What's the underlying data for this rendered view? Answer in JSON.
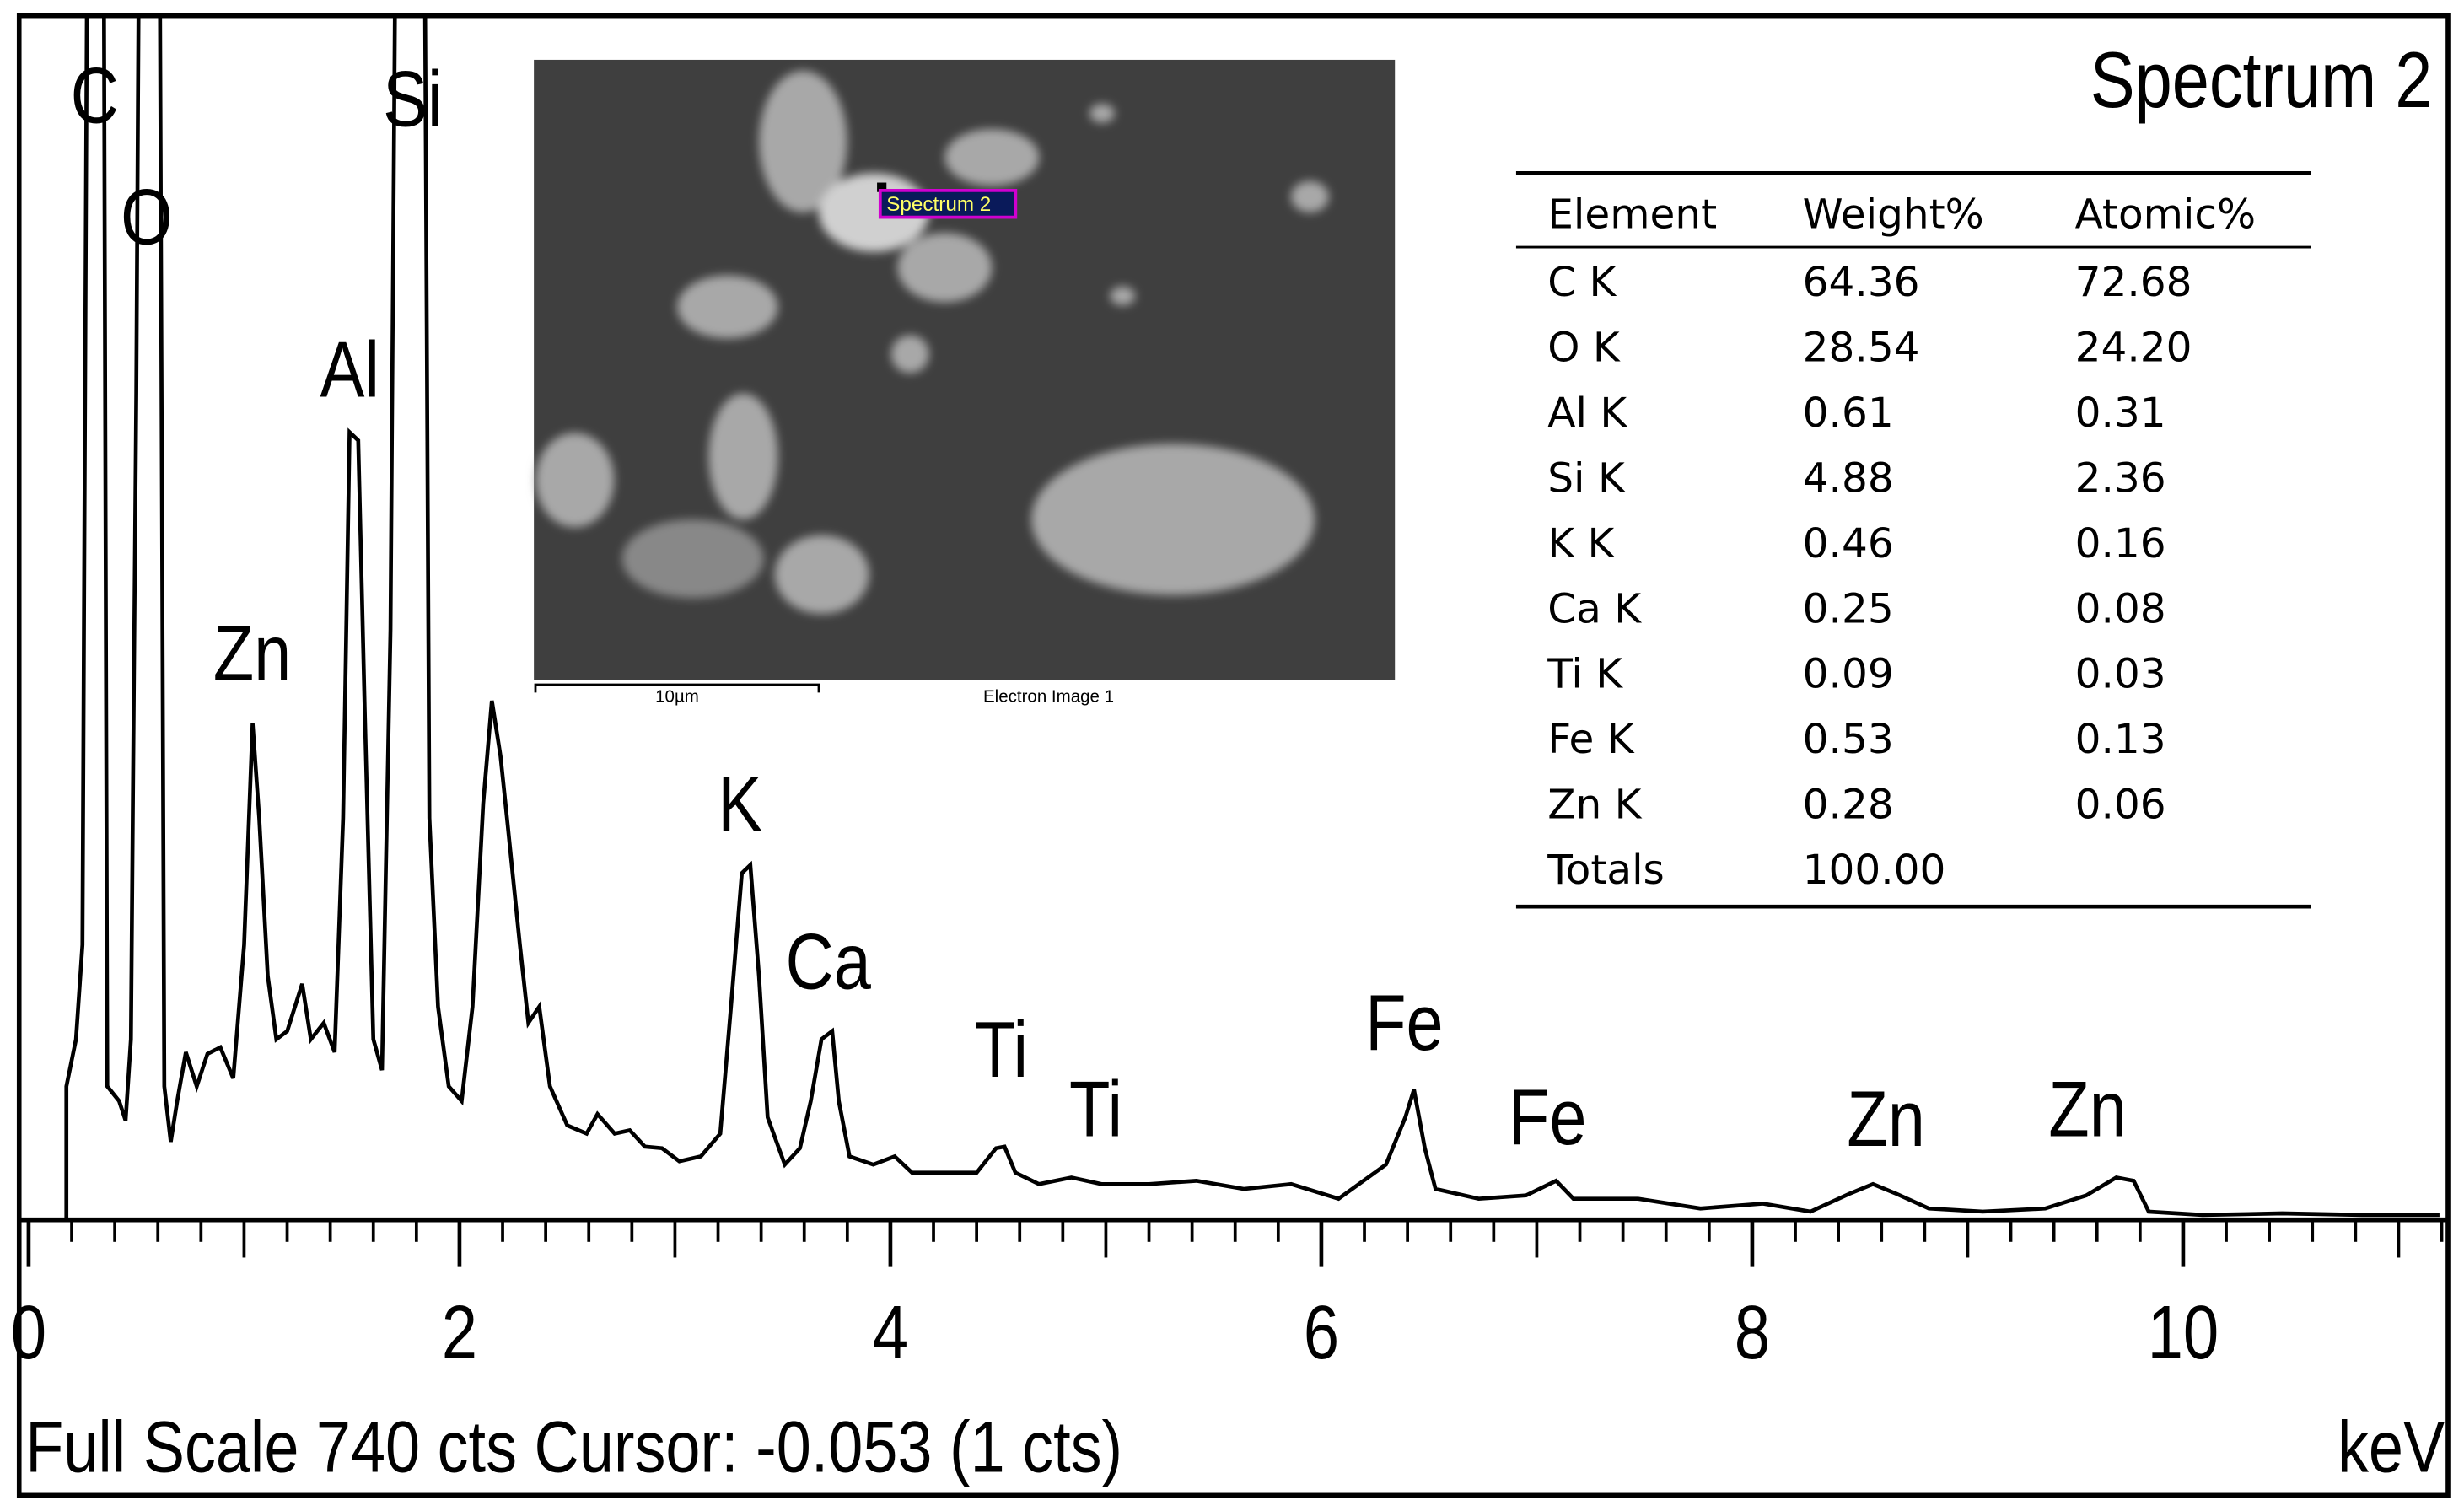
{
  "chart_data": {
    "type": "line",
    "title": "Spectrum 2",
    "footer": "Full Scale 740 cts Cursor: -0.053  (1 cts)",
    "xlabel": "keV",
    "xlim": [
      0,
      11.2
    ],
    "xticks": [
      0,
      2,
      4,
      6,
      8,
      10
    ],
    "xminor_step": 0.2,
    "ylim": [
      0,
      740
    ],
    "color": "#000000",
    "peak_labels": [
      "C",
      "O",
      "Si",
      "Al",
      "Zn",
      "K",
      "Ca",
      "Ti",
      "Ti",
      "Fe",
      "Fe",
      "Zn",
      "Zn"
    ],
    "x": [
      0.175,
      0.175,
      0.22,
      0.25,
      0.27,
      0.35,
      0.365,
      0.42,
      0.45,
      0.475,
      0.5,
      0.51,
      0.61,
      0.63,
      0.66,
      0.69,
      0.73,
      0.78,
      0.83,
      0.89,
      0.95,
      1.0,
      1.04,
      1.07,
      1.11,
      1.15,
      1.2,
      1.27,
      1.31,
      1.37,
      1.42,
      1.46,
      1.49,
      1.53,
      1.56,
      1.6,
      1.64,
      1.68,
      1.7,
      1.84,
      1.86,
      1.9,
      1.95,
      2.01,
      2.06,
      2.11,
      2.15,
      2.19,
      2.22,
      2.28,
      2.32,
      2.37,
      2.42,
      2.5,
      2.59,
      2.64,
      2.72,
      2.79,
      2.86,
      2.94,
      3.02,
      3.12,
      3.21,
      3.26,
      3.31,
      3.35,
      3.39,
      3.43,
      3.51,
      3.58,
      3.63,
      3.68,
      3.73,
      3.76,
      3.81,
      3.92,
      4.02,
      4.1,
      4.25,
      4.4,
      4.49,
      4.53,
      4.58,
      4.69,
      4.84,
      4.98,
      5.2,
      5.42,
      5.64,
      5.86,
      6.08,
      6.3,
      6.39,
      6.43,
      6.48,
      6.53,
      6.73,
      6.95,
      7.09,
      7.17,
      7.47,
      7.76,
      8.05,
      8.27,
      8.45,
      8.56,
      8.67,
      8.82,
      9.07,
      9.36,
      9.55,
      9.69,
      9.77,
      9.84,
      10.09,
      10.46,
      10.83,
      11.19
    ],
    "values": [
      0,
      82,
      111,
      169,
      740,
      740,
      82,
      73,
      61,
      111,
      508,
      740,
      740,
      82,
      48,
      73,
      103,
      82,
      102,
      106,
      87,
      169,
      305,
      247,
      150,
      111,
      116,
      145,
      111,
      121,
      103,
      247,
      484,
      479,
      314,
      111,
      92,
      363,
      740,
      740,
      247,
      131,
      82,
      73,
      131,
      256,
      319,
      285,
      247,
      169,
      121,
      131,
      82,
      58,
      53,
      65,
      53,
      55,
      45,
      44,
      36,
      39,
      53,
      131,
      213,
      218,
      150,
      63,
      34,
      44,
      73,
      111,
      116,
      73,
      39,
      34,
      39,
      29,
      29,
      29,
      44,
      45,
      29,
      22,
      26,
      22,
      22,
      24,
      19,
      22,
      13,
      34,
      63,
      80,
      44,
      19,
      13,
      15,
      24,
      13,
      13,
      7,
      10,
      5,
      16,
      22,
      16,
      7,
      5,
      7,
      15,
      26,
      24,
      5,
      3,
      4,
      3,
      3
    ]
  },
  "table": {
    "columns": [
      "Element",
      "Weight%",
      "Atomic%"
    ],
    "rows": [
      [
        "C K",
        "64.36",
        "72.68"
      ],
      [
        "O K",
        "28.54",
        "24.20"
      ],
      [
        "Al K",
        "0.61",
        "0.31"
      ],
      [
        "Si K",
        "4.88",
        "2.36"
      ],
      [
        "K K",
        "0.46",
        "0.16"
      ],
      [
        "Ca K",
        "0.25",
        "0.08"
      ],
      [
        "Ti K",
        "0.09",
        "0.03"
      ],
      [
        "Fe K",
        "0.53",
        "0.13"
      ],
      [
        "Zn K",
        "0.28",
        "0.06"
      ],
      [
        "Totals",
        "100.00"
      ]
    ]
  },
  "inset": {
    "marker_label": "Spectrum 2",
    "scale_bar": "10µm",
    "caption": "Electron Image 1"
  }
}
